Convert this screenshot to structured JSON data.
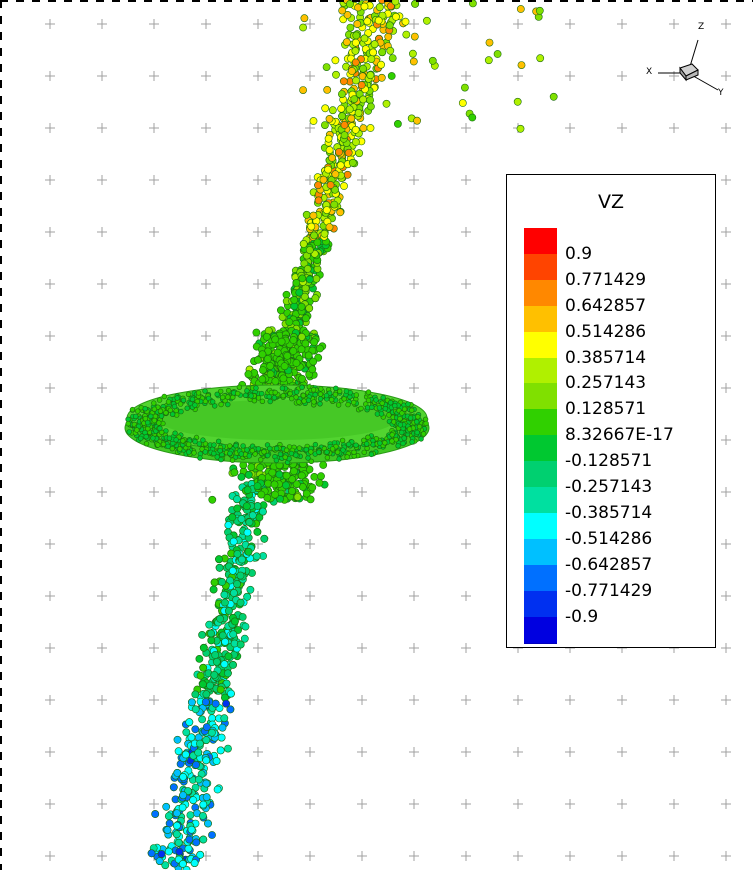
{
  "legend": {
    "title": "VZ",
    "levels": [
      "0.9",
      "0.771429",
      "0.642857",
      "0.514286",
      "0.385714",
      "0.257143",
      "0.128571",
      "8.32667E-17",
      "-0.128571",
      "-0.257143",
      "-0.385714",
      "-0.514286",
      "-0.642857",
      "-0.771429",
      "-0.9"
    ],
    "colors": [
      "#ff0000",
      "#ff4400",
      "#ff8800",
      "#ffc000",
      "#ffff00",
      "#b0f000",
      "#80e000",
      "#30d000",
      "#00c830",
      "#00d070",
      "#00e0a0",
      "#00ffff",
      "#00c0ff",
      "#0070ff",
      "#0030f0",
      "#0000e0"
    ]
  },
  "axes": {
    "x": "X",
    "y": "Y",
    "z": "Z"
  },
  "colors": {
    "disk": "#3cc81e",
    "particle_main": "#44d024",
    "particle_edge": "#208010"
  }
}
